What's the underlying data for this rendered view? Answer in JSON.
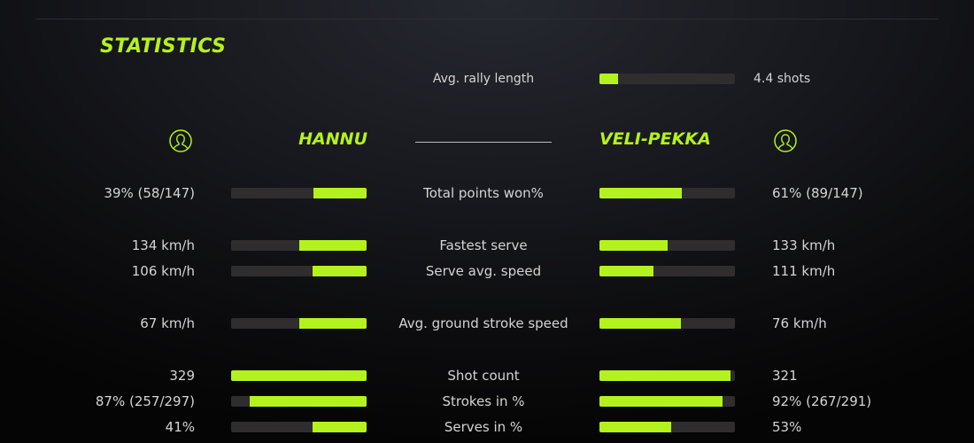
{
  "title": "STATISTICS",
  "accent": "#b4f21d",
  "rally": {
    "label": "Avg. rally length",
    "value": "4.4 shots",
    "fraction": 0.14
  },
  "players": {
    "left": {
      "name": "HANNU",
      "icon": "user-icon"
    },
    "right": {
      "name": "VELI-PEKKA",
      "icon": "user-icon"
    }
  },
  "stats": [
    {
      "label": "Total points won%",
      "left": "39% (58/147)",
      "right": "61% (89/147)",
      "left_fraction": 0.39,
      "right_fraction": 0.61
    },
    {
      "label": "Fastest serve",
      "left": "134 km/h",
      "right": "133 km/h",
      "left_fraction": 0.5,
      "right_fraction": 0.5
    },
    {
      "label": "Serve avg. speed",
      "left": "106 km/h",
      "right": "111 km/h",
      "left_fraction": 0.4,
      "right_fraction": 0.4
    },
    {
      "label": "Avg. ground stroke speed",
      "left": "67 km/h",
      "right": "76 km/h",
      "left_fraction": 0.5,
      "right_fraction": 0.6
    },
    {
      "label": "Shot count",
      "left": "329",
      "right": "321",
      "left_fraction": 1.0,
      "right_fraction": 0.97
    },
    {
      "label": "Strokes in %",
      "left": "87% (257/297)",
      "right": "92% (267/291)",
      "left_fraction": 0.86,
      "right_fraction": 0.91
    },
    {
      "label": "Serves in %",
      "left": "41%",
      "right": "53%",
      "left_fraction": 0.4,
      "right_fraction": 0.53
    }
  ]
}
